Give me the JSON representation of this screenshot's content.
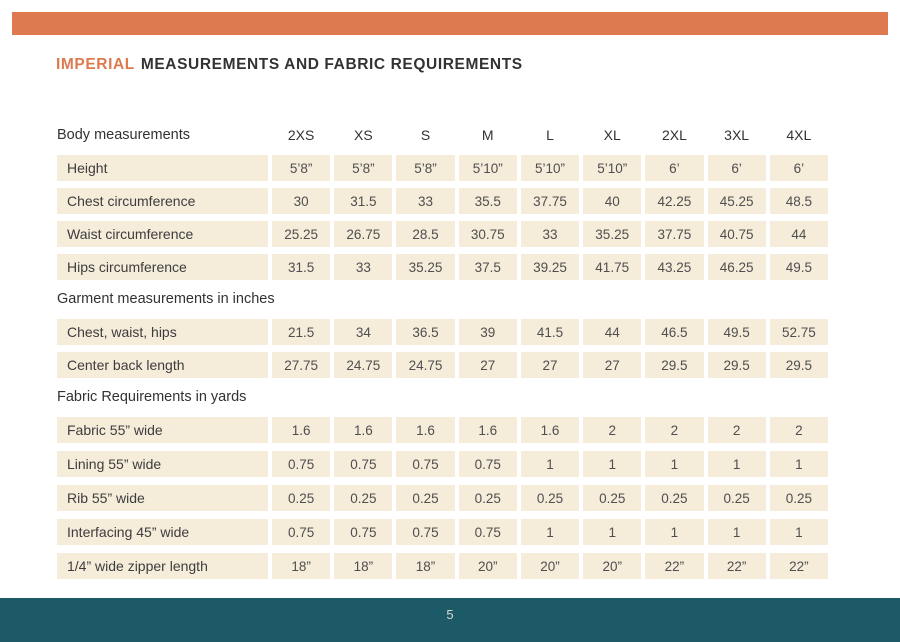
{
  "page": {
    "title_highlight": "IMPERIAL",
    "title_rest": "MEASUREMENTS AND FABRIC REQUIREMENTS",
    "page_number": "5"
  },
  "colors": {
    "accent_orange": "#DD7A4F",
    "footer_teal": "#1D5A67",
    "cell_cream": "#F5ECDA",
    "text_dark": "#333333"
  },
  "table": {
    "size_columns": [
      "2XS",
      "XS",
      "S",
      "M",
      "L",
      "XL",
      "2XL",
      "3XL",
      "4XL"
    ],
    "sections": [
      {
        "header": "Body measurements",
        "header_in_row": true,
        "rows": [
          {
            "label": "Height",
            "values": [
              "5’8”",
              "5’8”",
              "5’8”",
              "5’10”",
              "5’10”",
              "5’10”",
              "6’",
              "6’",
              "6’"
            ]
          },
          {
            "label": "Chest circumference",
            "values": [
              "30",
              "31.5",
              "33",
              "35.5",
              "37.75",
              "40",
              "42.25",
              "45.25",
              "48.5"
            ]
          },
          {
            "label": "Waist circumference",
            "values": [
              "25.25",
              "26.75",
              "28.5",
              "30.75",
              "33",
              "35.25",
              "37.75",
              "40.75",
              "44"
            ]
          },
          {
            "label": "Hips circumference",
            "values": [
              "31.5",
              "33",
              "35.25",
              "37.5",
              "39.25",
              "41.75",
              "43.25",
              "46.25",
              "49.5"
            ]
          }
        ]
      },
      {
        "header": "Garment measurements in inches",
        "header_in_row": false,
        "rows": [
          {
            "label": "Chest, waist, hips",
            "values": [
              "21.5",
              "34",
              "36.5",
              "39",
              "41.5",
              "44",
              "46.5",
              "49.5",
              "52.75"
            ]
          },
          {
            "label": "Center back length",
            "values": [
              "27.75",
              "24.75",
              "24.75",
              "27",
              "27",
              "27",
              "29.5",
              "29.5",
              "29.5"
            ]
          }
        ]
      },
      {
        "header": "Fabric Requirements in yards",
        "header_in_row": false,
        "rows": [
          {
            "label": "Fabric 55” wide",
            "values": [
              "1.6",
              "1.6",
              "1.6",
              "1.6",
              "1.6",
              "2",
              "2",
              "2",
              "2"
            ]
          },
          {
            "label": "Lining 55” wide",
            "values": [
              "0.75",
              "0.75",
              "0.75",
              "0.75",
              "1",
              "1",
              "1",
              "1",
              "1"
            ]
          },
          {
            "label": "Rib 55” wide",
            "values": [
              "0.25",
              "0.25",
              "0.25",
              "0.25",
              "0.25",
              "0.25",
              "0.25",
              "0.25",
              "0.25"
            ]
          },
          {
            "label": "Interfacing 45” wide",
            "values": [
              "0.75",
              "0.75",
              "0.75",
              "0.75",
              "1",
              "1",
              "1",
              "1",
              "1"
            ]
          },
          {
            "label": "1/4” wide zipper length",
            "values": [
              "18”",
              "18”",
              "18”",
              "20”",
              "20”",
              "20”",
              "22”",
              "22”",
              "22”"
            ]
          }
        ]
      }
    ]
  }
}
